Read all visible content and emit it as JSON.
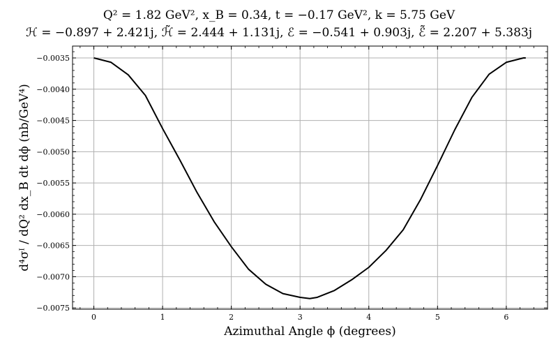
{
  "chart_data": {
    "type": "line",
    "title_line1": "Q² = 1.82 GeV², x_B = 0.34, t = −0.17 GeV², k = 5.75 GeV",
    "title_line2": "ℋ = −0.897 + 2.421j, ℋ̃ = 2.444 + 1.131j, ℰ = −0.541 + 0.903j, ℰ̃ = 2.207 + 5.383j",
    "xlabel": "Azimuthal Angle ϕ (degrees)",
    "ylabel": "d⁴σᴵ / dQ² dx_B dt dϕ  (nb/GeV⁴)",
    "xlim": [
      -0.31,
      6.6
    ],
    "ylim": [
      -0.00752,
      -0.00331
    ],
    "grid": true,
    "line_color": "#000000",
    "xticks": [
      0,
      1,
      2,
      3,
      4,
      5,
      6
    ],
    "xtick_labels": [
      "0",
      "1",
      "2",
      "3",
      "4",
      "5",
      "6"
    ],
    "yticks": [
      -0.0035,
      -0.004,
      -0.0045,
      -0.005,
      -0.0055,
      -0.006,
      -0.0065,
      -0.007,
      -0.0075
    ],
    "ytick_labels": [
      "−0.0035",
      "−0.0040",
      "−0.0045",
      "−0.0050",
      "−0.0055",
      "−0.0060",
      "−0.0065",
      "−0.0070",
      "−0.0075"
    ],
    "series": [
      {
        "x": [
          0,
          0.25,
          0.5,
          0.75,
          1.0,
          1.25,
          1.5,
          1.75,
          2.0,
          2.25,
          2.5,
          2.75,
          3.0,
          3.1416,
          3.25,
          3.5,
          3.75,
          4.0,
          4.25,
          4.5,
          4.75,
          5.0,
          5.25,
          5.5,
          5.75,
          6.0,
          6.25,
          6.2832
        ],
        "values": [
          -0.0035,
          -0.00357,
          -0.00377,
          -0.0041,
          -0.00463,
          -0.00513,
          -0.00565,
          -0.00612,
          -0.00652,
          -0.00688,
          -0.00712,
          -0.00727,
          -0.00733,
          -0.00735,
          -0.00733,
          -0.00722,
          -0.00705,
          -0.00685,
          -0.00658,
          -0.00625,
          -0.00577,
          -0.00522,
          -0.00465,
          -0.00413,
          -0.00376,
          -0.00357,
          -0.0035,
          -0.0035
        ]
      }
    ]
  }
}
